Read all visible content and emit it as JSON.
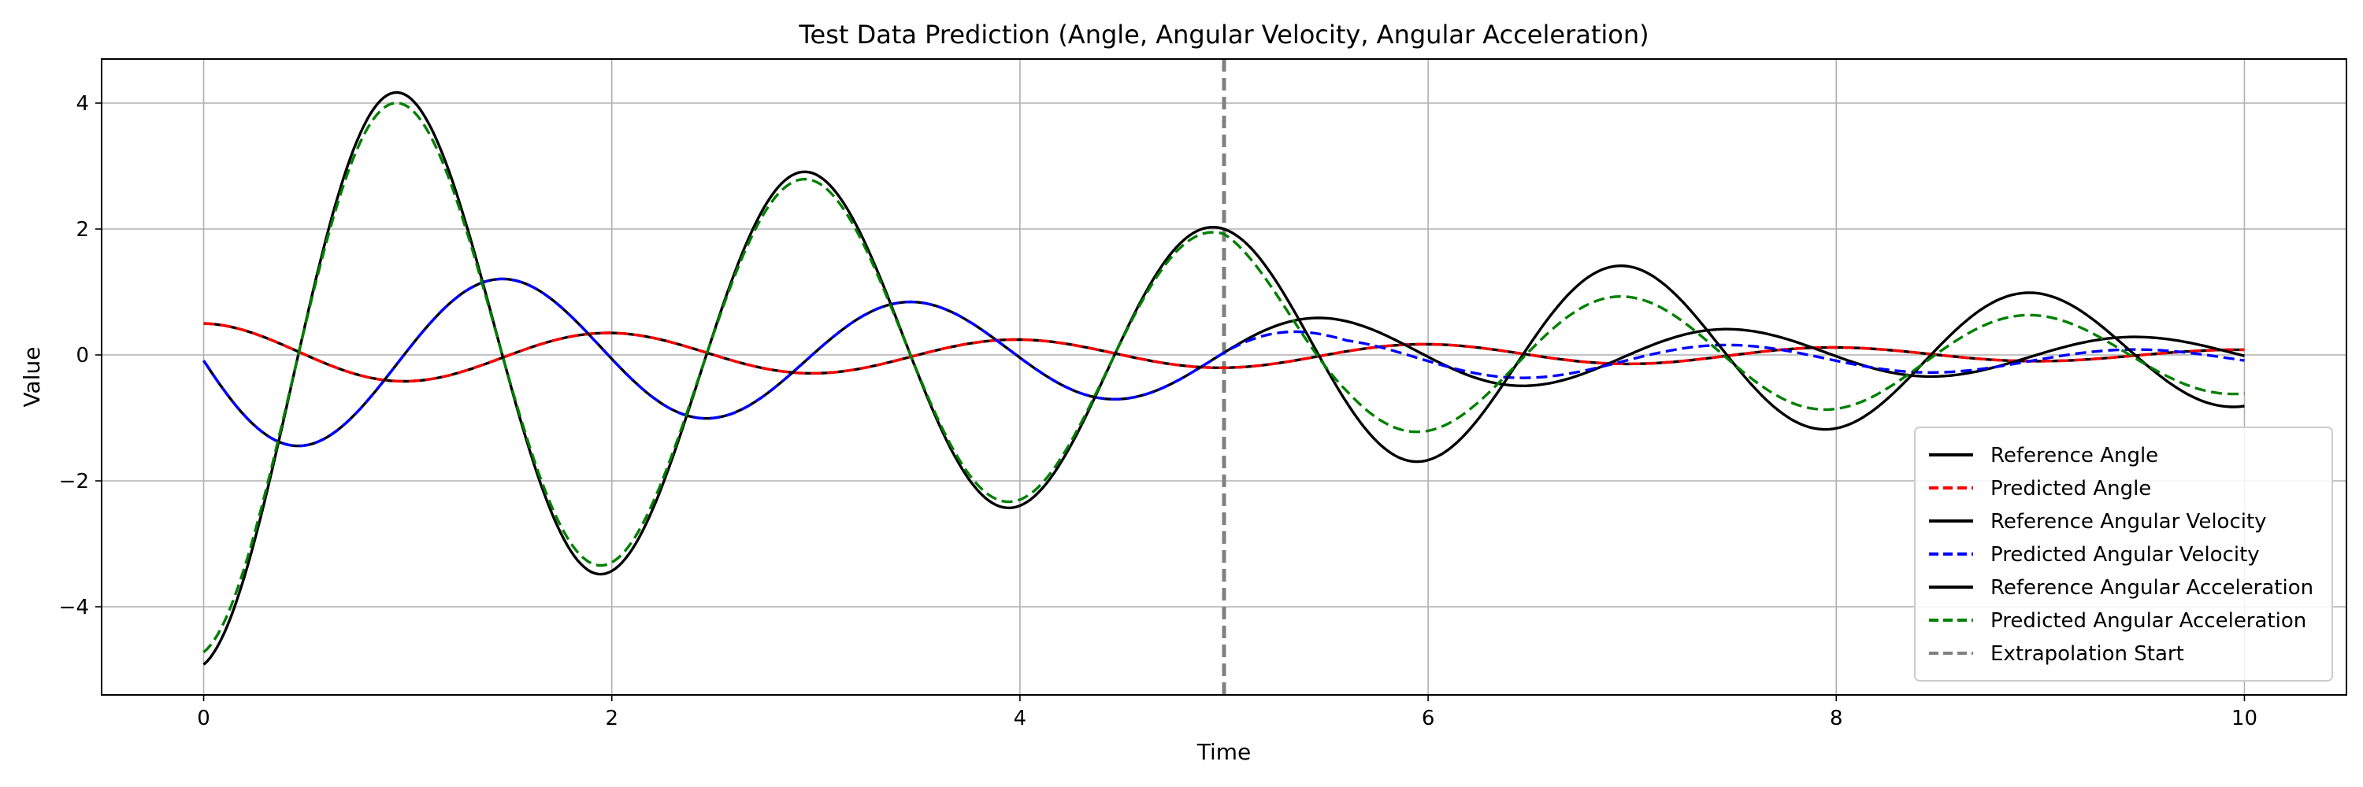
{
  "chart_data": {
    "type": "line",
    "title": "Test Data Prediction (Angle, Angular Velocity, Angular Acceleration)",
    "xlabel": "Time",
    "ylabel": "Value",
    "xlim": [
      -0.5,
      10.5
    ],
    "ylim": [
      -5.4,
      4.7
    ],
    "xticks": [
      0,
      2,
      4,
      6,
      8,
      10
    ],
    "yticks": [
      -4,
      -2,
      0,
      2,
      4
    ],
    "grid": true,
    "legend_position": "lower-right",
    "annotations": [
      {
        "type": "vline",
        "x": 5,
        "name": "Extrapolation Start",
        "color": "#808080",
        "dash": "dashed"
      }
    ],
    "series": [
      {
        "name": "Reference Angle",
        "color": "#000000",
        "dash": "solid",
        "model": {
          "A": 0.5,
          "omega": 3.1416,
          "decay": 0.18,
          "kind": "angle"
        },
        "x_range": [
          0,
          10
        ]
      },
      {
        "name": "Predicted Angle",
        "color": "#ff0000",
        "dash": "dashed",
        "model": {
          "A": 0.5,
          "omega": 3.1416,
          "decay": 0.18,
          "kind": "angle"
        },
        "x_range": [
          0,
          10
        ]
      },
      {
        "name": "Reference Angular Velocity",
        "color": "#000000",
        "dash": "solid",
        "model": {
          "A": 0.5,
          "omega": 3.1416,
          "decay": 0.18,
          "kind": "velocity"
        },
        "x_range": [
          0,
          10
        ]
      },
      {
        "name": "Predicted Angular Velocity",
        "color": "#0000ff",
        "dash": "dashed",
        "model": {
          "A": 0.5,
          "omega": 3.1416,
          "decay": 0.18,
          "kind": "velocity",
          "extrap_scale": 0.58,
          "extrap_shift": -0.08
        },
        "x_range": [
          0,
          10
        ]
      },
      {
        "name": "Reference Angular Acceleration",
        "color": "#000000",
        "dash": "solid",
        "model": {
          "A": 0.5,
          "omega": 3.1416,
          "decay": 0.18,
          "kind": "accel"
        },
        "x_range": [
          0,
          10
        ]
      },
      {
        "name": "Predicted Angular Acceleration",
        "color": "#008000",
        "dash": "dashed",
        "model": {
          "A": 0.5,
          "omega": 3.1416,
          "decay": 0.18,
          "kind": "accel",
          "scale": 0.96,
          "extrap_scale": 0.72,
          "extrap_shift": -0.05
        },
        "x_range": [
          0,
          10
        ]
      }
    ],
    "legend": [
      {
        "label": "Reference Angle",
        "color": "#000000",
        "dash": "solid"
      },
      {
        "label": "Predicted Angle",
        "color": "#ff0000",
        "dash": "dashed"
      },
      {
        "label": "Reference Angular Velocity",
        "color": "#000000",
        "dash": "solid"
      },
      {
        "label": "Predicted Angular Velocity",
        "color": "#0000ff",
        "dash": "dashed"
      },
      {
        "label": "Reference Angular Acceleration",
        "color": "#000000",
        "dash": "solid"
      },
      {
        "label": "Predicted Angular Acceleration",
        "color": "#008000",
        "dash": "dashed"
      },
      {
        "label": "Extrapolation Start",
        "color": "#808080",
        "dash": "dashed"
      }
    ]
  }
}
